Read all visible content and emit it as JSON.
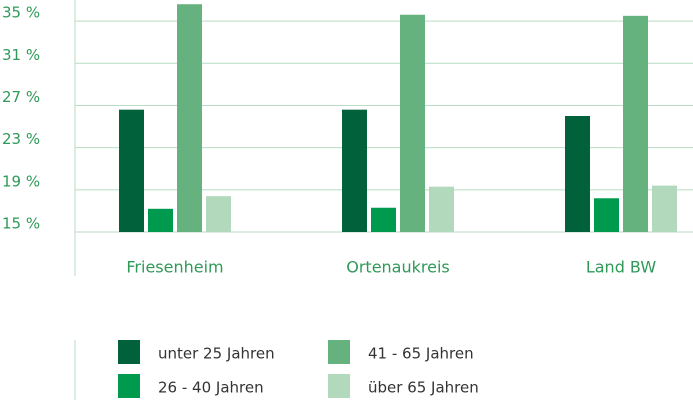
{
  "chart_data": {
    "type": "bar",
    "categories": [
      "Friesenheim",
      "Ortenaukreis",
      "Land BW"
    ],
    "series": [
      {
        "name": "unter 25 Jahren",
        "color": "#00613a",
        "values": [
          26.6,
          26.6,
          26.0
        ]
      },
      {
        "name": "26 - 40 Jahren",
        "color": "#009a4e",
        "values": [
          17.2,
          17.3,
          18.2
        ]
      },
      {
        "name": "41 - 65 Jahren",
        "color": "#66b27f",
        "values": [
          36.6,
          35.6,
          35.5
        ]
      },
      {
        "name": "über 65 Jahren",
        "color": "#b3d9bd",
        "values": [
          18.4,
          19.3,
          19.4
        ]
      }
    ],
    "ylim": [
      15,
      37
    ],
    "yticks": [
      {
        "value": 15,
        "label": "15 %"
      },
      {
        "value": 19,
        "label": "19 %"
      },
      {
        "value": 23,
        "label": "23 %"
      },
      {
        "value": 27,
        "label": "27 %"
      },
      {
        "value": 31,
        "label": "31 %"
      },
      {
        "value": 35,
        "label": "35 %"
      }
    ],
    "grid": true
  }
}
